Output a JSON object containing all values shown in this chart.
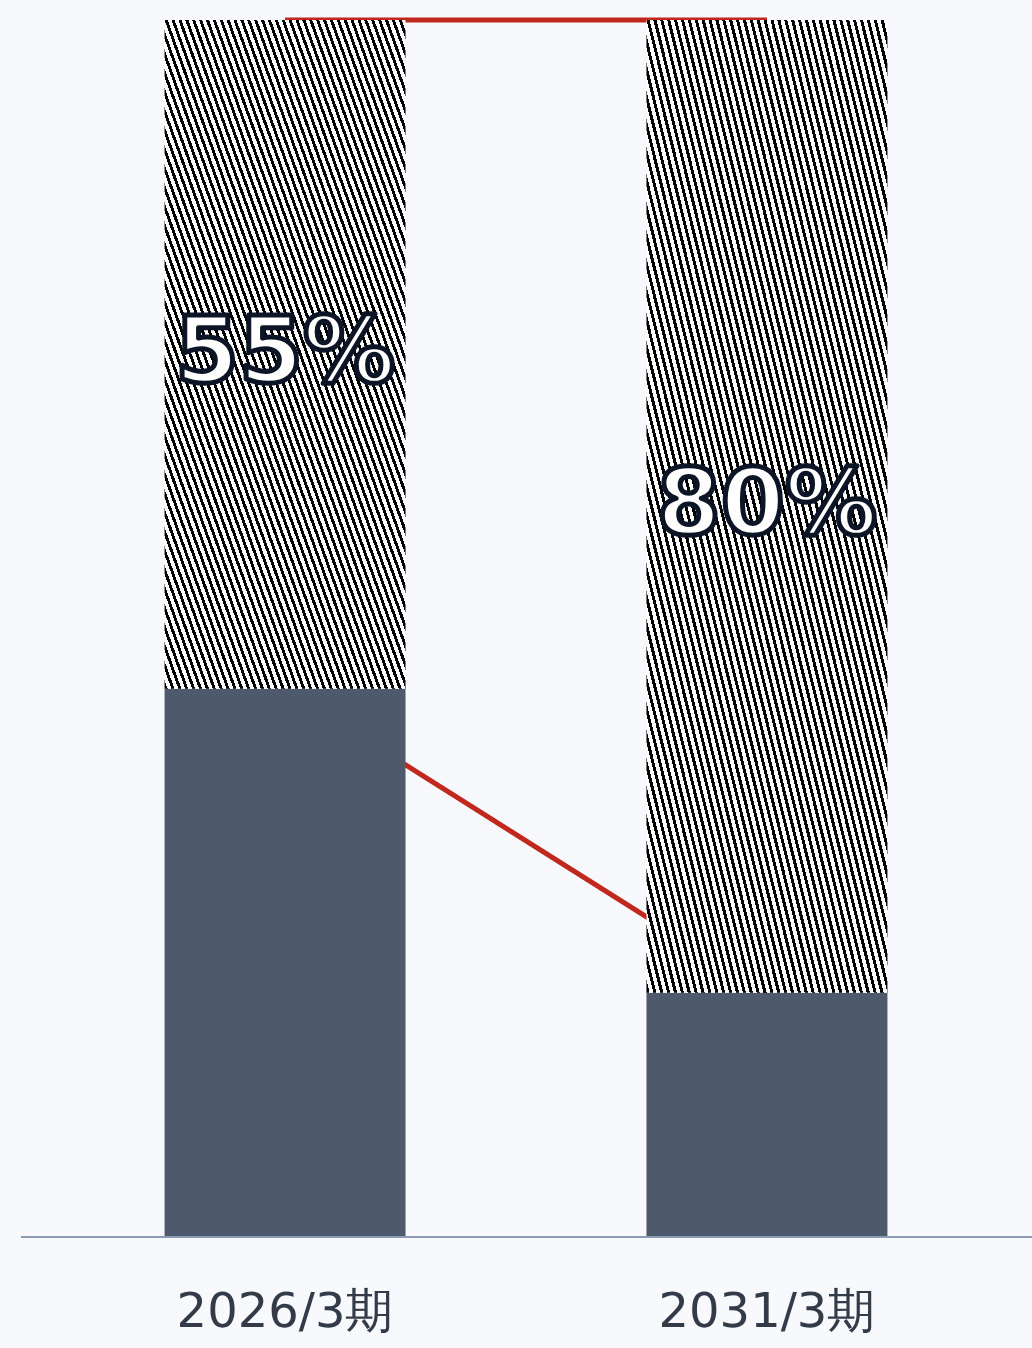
{
  "chart_data": {
    "type": "bar",
    "stacked": true,
    "categories": [
      "2026/3期",
      "2031/3期"
    ],
    "ylim": [
      0,
      100
    ],
    "tick_labels": "x",
    "series": [
      {
        "color": "#4e596b",
        "values": [
          45,
          20
        ]
      },
      {
        "color": "#000000",
        "values": [
          55,
          80
        ],
        "value_labels": [
          "55%",
          "80%"
        ]
      }
    ]
  }
}
